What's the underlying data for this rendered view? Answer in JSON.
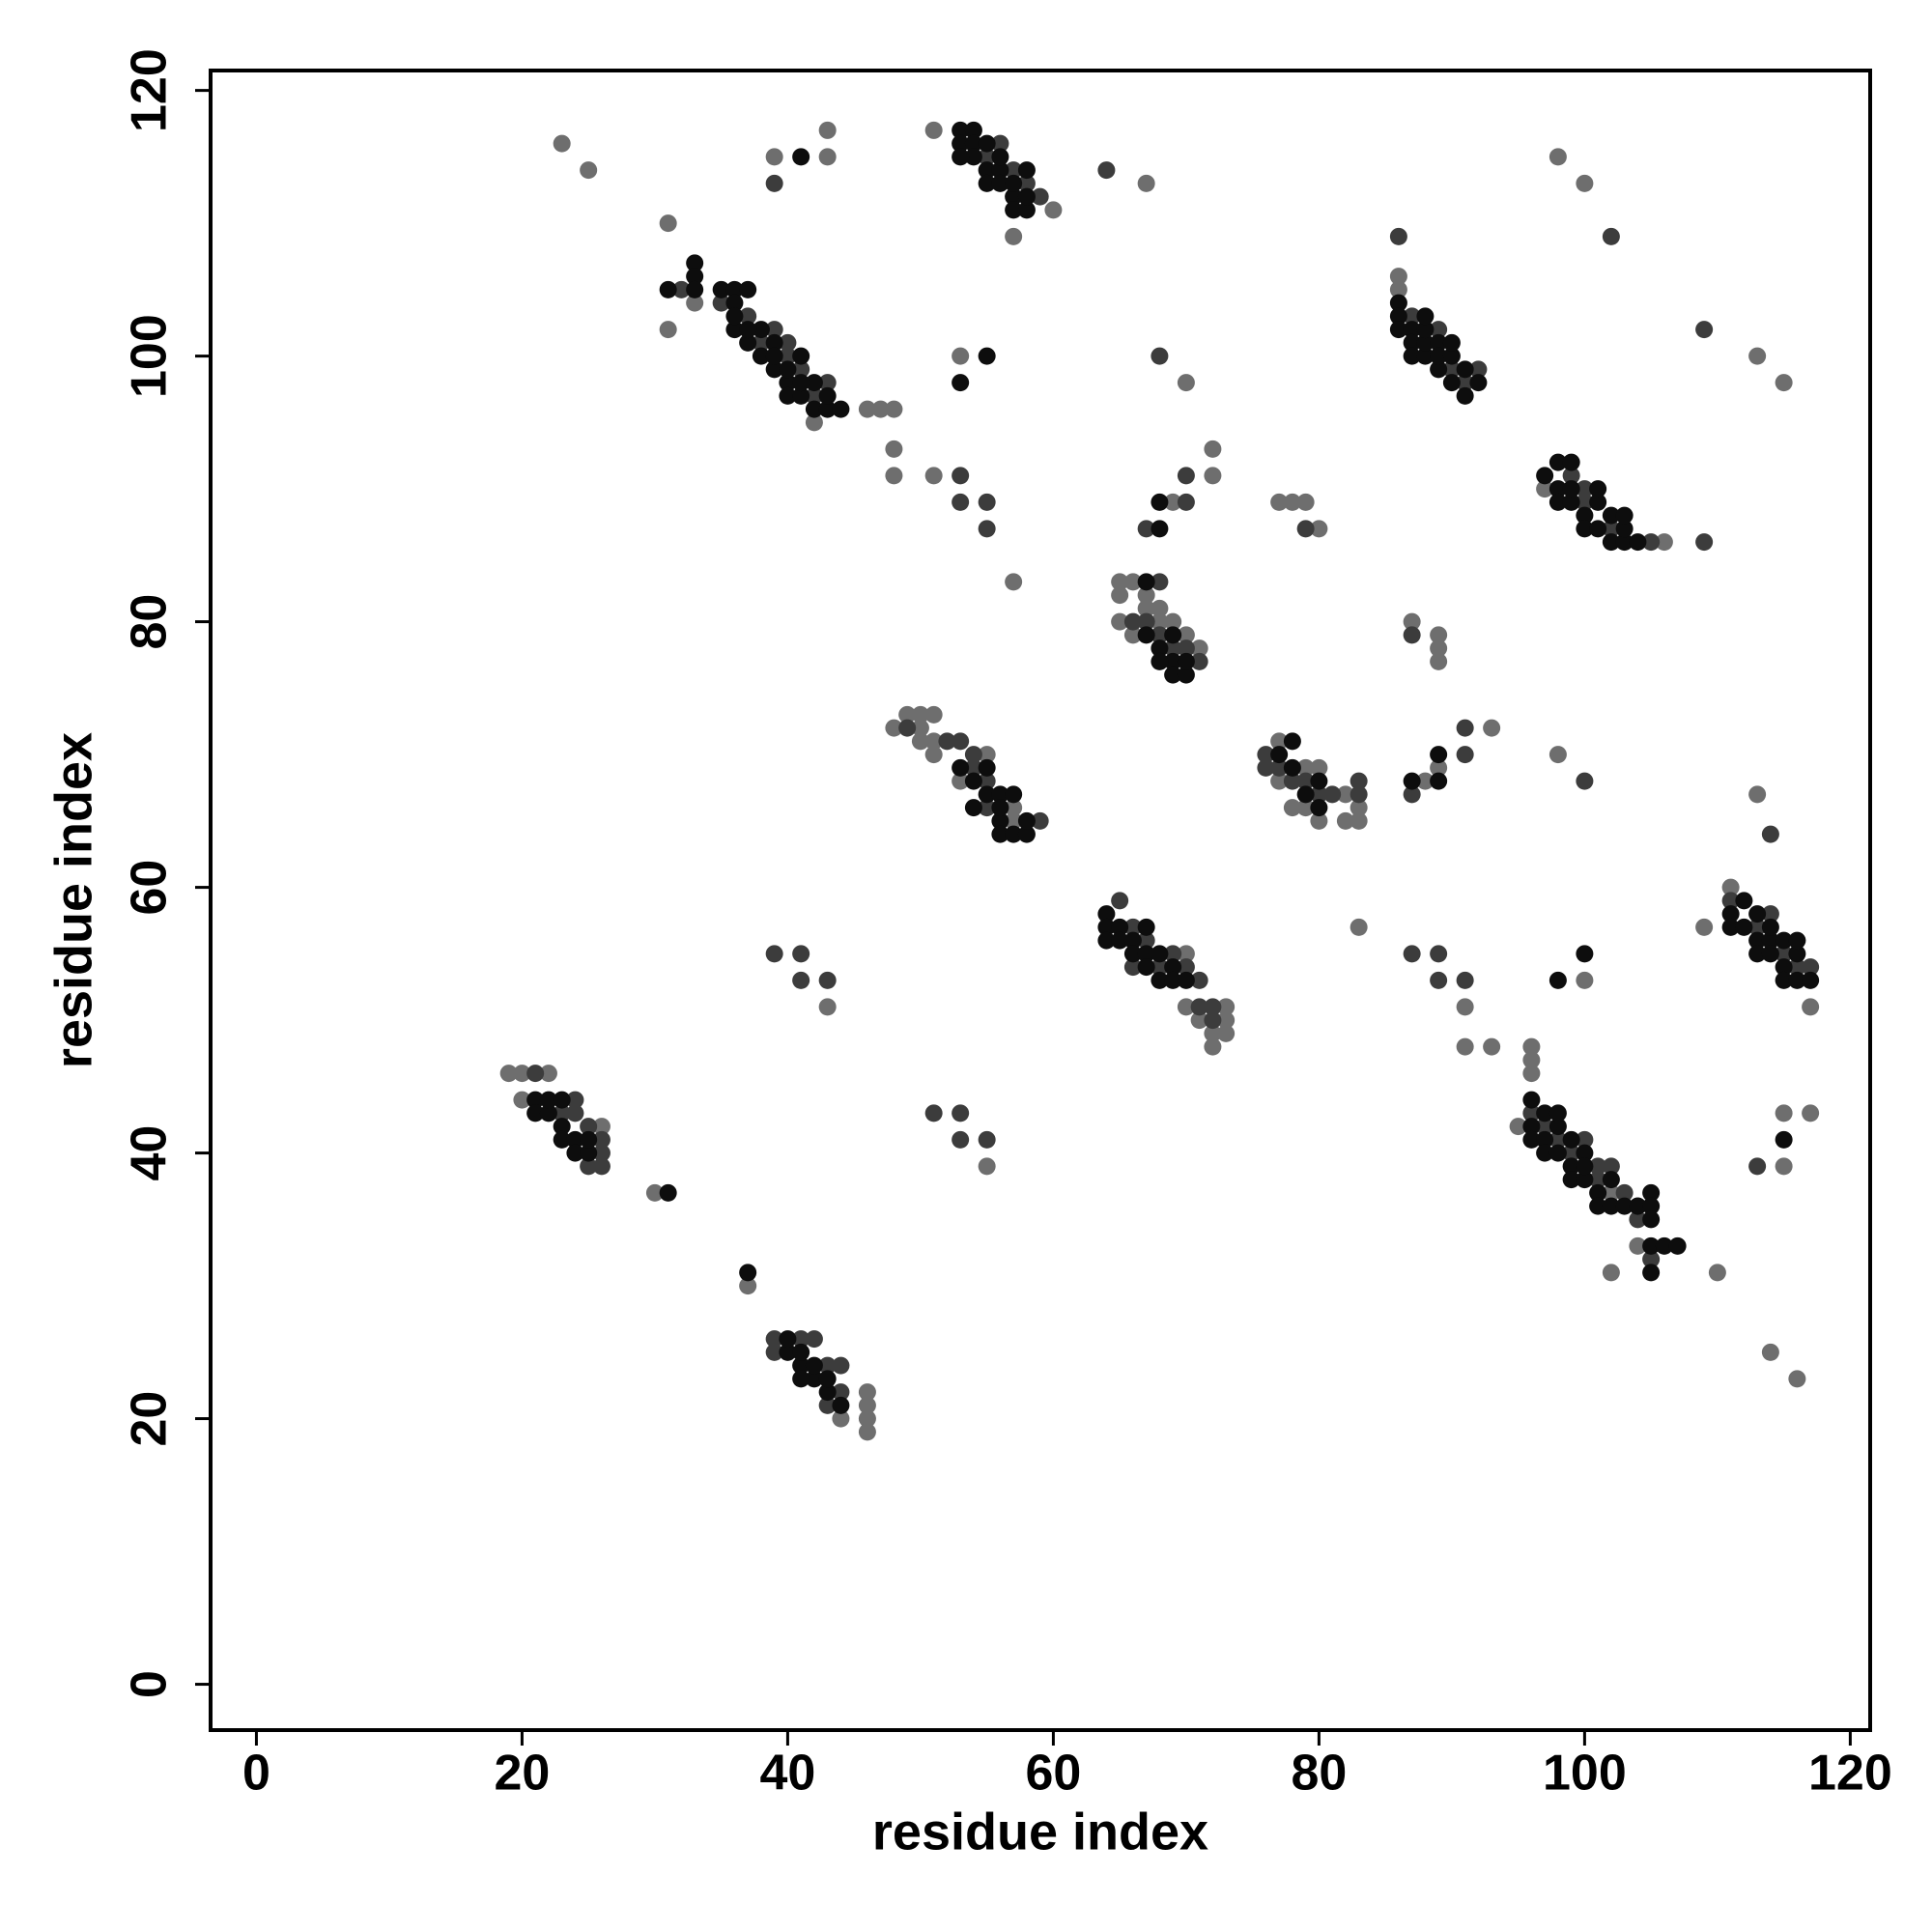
{
  "chart_data": {
    "type": "scatter",
    "xlabel": "residue index",
    "ylabel": "residue index",
    "xlim": [
      -3.45,
      121.5
    ],
    "ylim": [
      -3.45,
      121.5
    ],
    "xticks": [
      0,
      20,
      40,
      60,
      80,
      100,
      120
    ],
    "yticks": [
      0,
      20,
      40,
      60,
      80,
      100,
      120
    ],
    "series": [
      {
        "color": "#6e6e6e",
        "x": [
          23,
          25,
          31,
          39,
          43,
          43,
          51,
          31,
          33,
          42,
          46,
          47,
          48,
          48,
          48,
          51,
          57,
          60,
          67,
          53,
          57,
          70,
          72,
          72,
          69,
          65,
          66,
          65,
          65,
          66,
          67,
          67,
          68,
          69,
          70,
          71,
          68,
          77,
          78,
          79,
          80,
          86,
          86,
          106,
          97,
          98,
          100,
          113,
          115,
          48,
          49,
          50,
          51,
          50,
          51,
          51,
          50,
          53,
          55,
          57,
          57,
          77,
          79,
          80,
          78,
          79,
          80,
          82,
          82,
          83,
          83,
          77,
          88,
          89,
          93,
          87,
          89,
          89,
          89,
          98,
          70,
          70,
          71,
          72,
          73,
          73,
          73,
          72,
          43,
          55,
          83,
          91,
          91,
          93,
          100,
          111,
          109,
          117,
          113,
          96,
          96,
          96,
          95,
          102,
          104,
          102,
          110,
          115,
          115,
          117,
          114,
          116,
          19,
          20,
          22,
          20,
          26,
          30,
          37,
          44,
          46,
          46,
          46,
          46
        ],
        "y": [
          116,
          114,
          110,
          115,
          115,
          117,
          117,
          102,
          104,
          95,
          96,
          96,
          96,
          93,
          91,
          91,
          109,
          111,
          113,
          100,
          83,
          98,
          93,
          91,
          89,
          83,
          83,
          82,
          80,
          79,
          82,
          81,
          80,
          80,
          79,
          78,
          81,
          89,
          89,
          89,
          87,
          106,
          105,
          86,
          90,
          115,
          113,
          100,
          98,
          72,
          73,
          73,
          73,
          72,
          71,
          70,
          71,
          68,
          70,
          66,
          65,
          71,
          69,
          69,
          66,
          66,
          65,
          67,
          65,
          65,
          66,
          68,
          68,
          69,
          72,
          80,
          79,
          78,
          77,
          70,
          55,
          51,
          50,
          48,
          51,
          50,
          49,
          49,
          51,
          39,
          57,
          51,
          48,
          48,
          53,
          60,
          57,
          51,
          67,
          48,
          47,
          46,
          42,
          37,
          33,
          31,
          31,
          43,
          39,
          43,
          25,
          23,
          46,
          46,
          46,
          44,
          42,
          37,
          30,
          20,
          22,
          21,
          20,
          19
        ]
      },
      {
        "color": "#3c3c3c",
        "x": [
          39,
          32,
          35,
          37,
          38,
          39,
          40,
          41,
          42,
          43,
          40,
          55,
          56,
          57,
          58,
          59,
          64,
          53,
          55,
          53,
          55,
          68,
          70,
          70,
          67,
          66,
          67,
          68,
          68,
          69,
          70,
          71,
          79,
          86,
          87,
          89,
          90,
          92,
          91,
          99,
          100,
          100,
          102,
          105,
          109,
          102,
          109,
          49,
          52,
          53,
          54,
          54,
          55,
          55,
          59,
          76,
          76,
          77,
          78,
          79,
          80,
          83,
          83,
          81,
          87,
          91,
          91,
          87,
          100,
          65,
          66,
          67,
          68,
          66,
          69,
          70,
          71,
          71,
          72,
          72,
          39,
          41,
          41,
          43,
          51,
          53,
          53,
          55,
          87,
          89,
          89,
          91,
          111,
          114,
          115,
          116,
          117,
          113,
          114,
          96,
          97,
          98,
          99,
          100,
          101,
          101,
          102,
          103,
          104,
          105,
          104,
          113,
          21,
          23,
          24,
          25,
          26,
          26,
          25,
          26,
          24,
          39,
          39,
          41,
          42,
          43,
          44,
          44,
          43
        ],
        "y": [
          113,
          105,
          104,
          103,
          101,
          102,
          100,
          99,
          97,
          98,
          101,
          115,
          116,
          114,
          113,
          112,
          114,
          91,
          89,
          89,
          87,
          100,
          91,
          89,
          87,
          80,
          80,
          79,
          83,
          78,
          78,
          77,
          87,
          109,
          103,
          102,
          99,
          99,
          98,
          91,
          90,
          89,
          87,
          86,
          86,
          109,
          102,
          72,
          71,
          71,
          70,
          69,
          68,
          66,
          65,
          70,
          69,
          69,
          68,
          68,
          67,
          68,
          67,
          67,
          67,
          70,
          72,
          79,
          68,
          59,
          57,
          56,
          54,
          54,
          55,
          54,
          53,
          51,
          50,
          51,
          55,
          55,
          53,
          53,
          43,
          43,
          41,
          41,
          55,
          55,
          53,
          53,
          59,
          58,
          55,
          54,
          54,
          57,
          64,
          43,
          42,
          41,
          40,
          41,
          38,
          39,
          39,
          37,
          35,
          32,
          36,
          39,
          46,
          43,
          44,
          42,
          40,
          41,
          39,
          39,
          43,
          26,
          25,
          26,
          26,
          24,
          24,
          22,
          21
        ]
      },
      {
        "color": "#0d0d0d",
        "x": [
          41,
          31,
          33,
          33,
          33,
          35,
          36,
          37,
          36,
          36,
          37,
          38,
          39,
          40,
          40,
          41,
          42,
          43,
          38,
          39,
          41,
          42,
          43,
          44,
          36,
          37,
          39,
          40,
          41,
          53,
          54,
          53,
          54,
          55,
          54,
          55,
          56,
          55,
          56,
          57,
          57,
          58,
          58,
          58,
          53,
          56,
          57,
          55,
          53,
          68,
          68,
          67,
          67,
          68,
          69,
          69,
          70,
          68,
          69,
          70,
          86,
          86,
          86,
          87,
          87,
          87,
          88,
          88,
          88,
          88,
          89,
          89,
          89,
          90,
          90,
          90,
          91,
          91,
          92,
          97,
          98,
          99,
          98,
          98,
          99,
          99,
          100,
          100,
          101,
          101,
          101,
          102,
          102,
          103,
          103,
          103,
          104,
          53,
          54,
          55,
          55,
          56,
          57,
          56,
          56,
          57,
          58,
          58,
          54,
          56,
          77,
          78,
          78,
          79,
          80,
          80,
          87,
          89,
          89,
          64,
          64,
          64,
          65,
          65,
          66,
          66,
          67,
          67,
          67,
          68,
          68,
          69,
          69,
          70,
          98,
          100,
          111,
          111,
          112,
          113,
          113,
          114,
          114,
          115,
          115,
          116,
          116,
          117,
          113,
          114,
          115,
          116,
          112,
          96,
          96,
          96,
          97,
          97,
          97,
          98,
          98,
          98,
          99,
          99,
          99,
          100,
          100,
          100,
          101,
          101,
          102,
          102,
          103,
          104,
          105,
          105,
          105,
          105,
          106,
          107,
          105,
          115,
          21,
          21,
          22,
          23,
          23,
          24,
          24,
          25,
          22,
          23,
          25,
          31,
          37,
          40,
          40,
          41,
          41,
          42,
          42,
          43,
          43,
          44,
          41
        ],
        "y": [
          115,
          105,
          107,
          106,
          105,
          105,
          105,
          105,
          104,
          102,
          101,
          100,
          99,
          98,
          97,
          97,
          96,
          96,
          102,
          101,
          100,
          98,
          97,
          96,
          103,
          102,
          100,
          99,
          98,
          117,
          117,
          116,
          116,
          116,
          115,
          114,
          114,
          113,
          113,
          112,
          111,
          111,
          114,
          112,
          115,
          115,
          113,
          100,
          98,
          89,
          87,
          83,
          79,
          78,
          77,
          76,
          76,
          77,
          79,
          77,
          104,
          103,
          102,
          102,
          101,
          100,
          100,
          101,
          102,
          103,
          99,
          101,
          100,
          98,
          100,
          101,
          97,
          99,
          98,
          91,
          92,
          92,
          90,
          89,
          89,
          90,
          88,
          87,
          87,
          89,
          90,
          86,
          88,
          86,
          87,
          88,
          86,
          69,
          68,
          69,
          67,
          67,
          67,
          65,
          64,
          64,
          64,
          65,
          66,
          66,
          70,
          71,
          69,
          67,
          66,
          68,
          68,
          70,
          68,
          58,
          57,
          56,
          57,
          56,
          56,
          55,
          57,
          55,
          54,
          55,
          53,
          54,
          53,
          53,
          53,
          55,
          58,
          57,
          57,
          56,
          55,
          56,
          55,
          54,
          53,
          55,
          53,
          53,
          58,
          57,
          56,
          56,
          59,
          44,
          42,
          41,
          43,
          41,
          40,
          40,
          42,
          43,
          39,
          41,
          38,
          40,
          38,
          39,
          37,
          36,
          36,
          38,
          36,
          36,
          37,
          36,
          35,
          33,
          33,
          33,
          31,
          41,
          44,
          43,
          43,
          42,
          41,
          41,
          40,
          40,
          44,
          44,
          41,
          37,
          31,
          25,
          26,
          24,
          25,
          23,
          24,
          22,
          23,
          21,
          23
        ]
      }
    ]
  }
}
